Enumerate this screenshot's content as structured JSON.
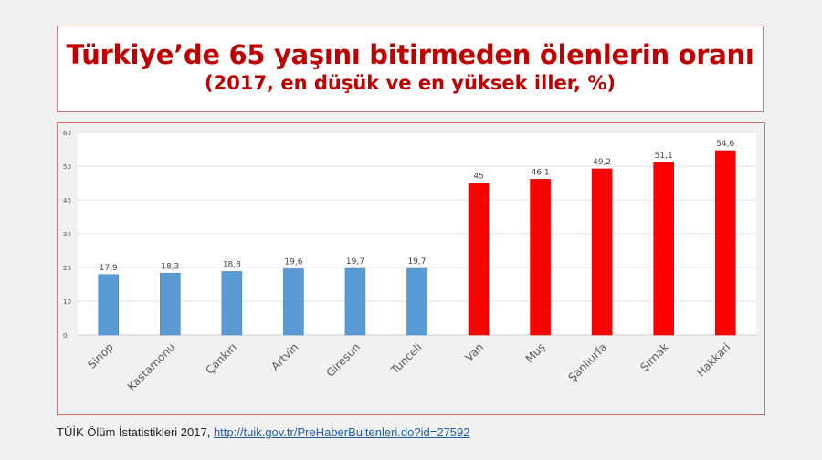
{
  "header": {
    "title": "Türkiye’de 65 yaşını bitirmeden ölenlerin oranı",
    "subtitle": "(2017, en düşük ve en yüksek iller, %)"
  },
  "chart_data": {
    "type": "bar",
    "title": "Türkiye’de 65 yaşını bitirmeden ölenlerin oranı",
    "subtitle": "(2017, en düşük ve en yüksek iller, %)",
    "xlabel": "",
    "ylabel": "",
    "ylim": [
      0,
      60
    ],
    "yticks": [
      0,
      10,
      20,
      30,
      40,
      50,
      60
    ],
    "grid": true,
    "categories": [
      "Sinop",
      "Kastamonu",
      "Çankırı",
      "Artvin",
      "Giresun",
      "Tunceli",
      "Van",
      "Muş",
      "Şanlıurfa",
      "Şırnak",
      "Hakkari"
    ],
    "values": [
      17.9,
      18.3,
      18.8,
      19.6,
      19.7,
      19.7,
      45,
      46.1,
      49.2,
      51.1,
      54.6
    ],
    "data_labels": [
      "17,9",
      "18,3",
      "18,8",
      "19,6",
      "19,7",
      "19,7",
      "45",
      "46,1",
      "49,2",
      "51,1",
      "54,6"
    ],
    "bar_colors": [
      "#5b9bd5",
      "#5b9bd5",
      "#5b9bd5",
      "#5b9bd5",
      "#5b9bd5",
      "#5b9bd5",
      "#ff0000",
      "#ff0000",
      "#ff0000",
      "#ff0000",
      "#ff0000"
    ]
  },
  "footer": {
    "source_text": "TÜİK Ölüm İstatistikleri 2017, ",
    "source_link": "http://tuik.gov.tr/PreHaberBultenleri.do?id=27592"
  }
}
